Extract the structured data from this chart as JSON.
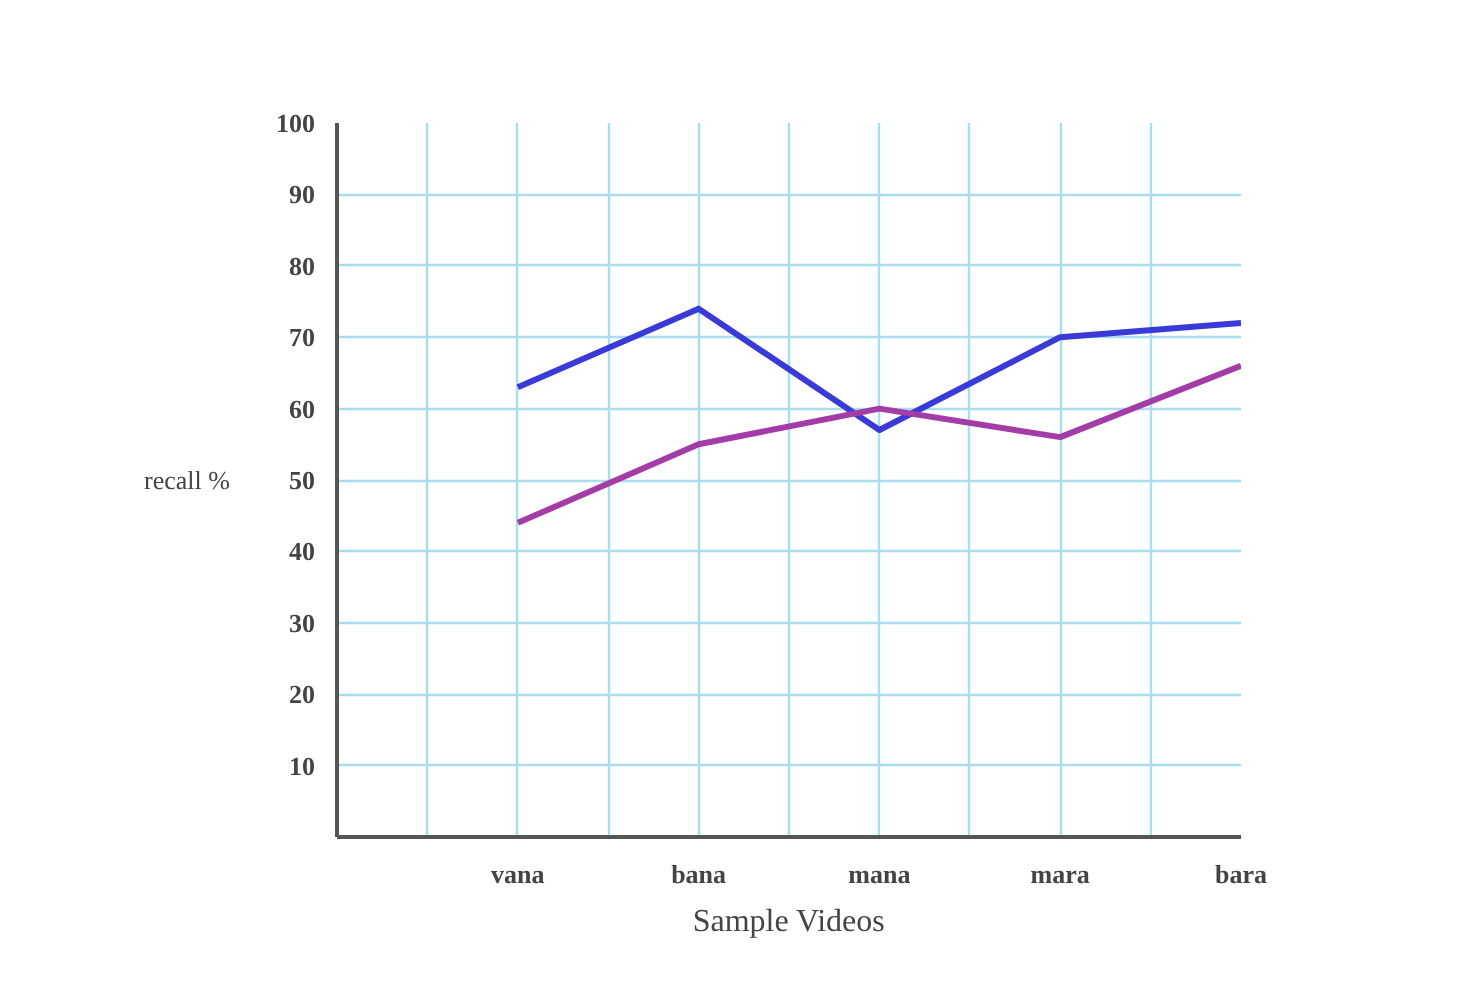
{
  "chart_data": {
    "type": "line",
    "xlabel": "Sample Videos",
    "ylabel": "recall %",
    "categories": [
      "vana",
      "bana",
      "mana",
      "mara",
      "bara"
    ],
    "series": [
      {
        "color": "#3a3ad8",
        "values": [
          63,
          74,
          57,
          70,
          72
        ]
      },
      {
        "color": "#a43ca8",
        "values": [
          44,
          55,
          60,
          56,
          66
        ]
      }
    ],
    "ylim": [
      0,
      100
    ],
    "yticks": [
      10,
      20,
      30,
      40,
      50,
      60,
      70,
      80,
      90,
      100
    ],
    "grid": true,
    "marker": "none",
    "line_style": "solid"
  }
}
